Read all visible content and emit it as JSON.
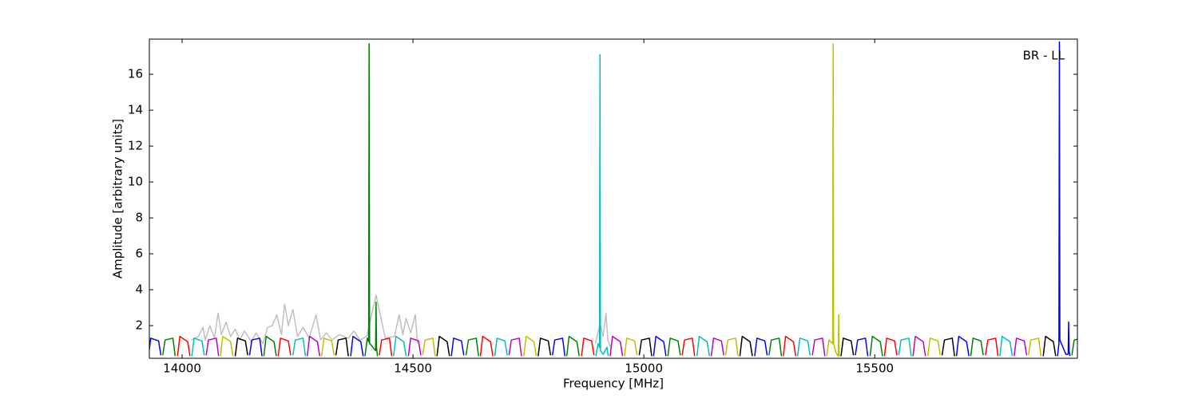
{
  "chart_data": {
    "type": "line",
    "xlabel": "Frequency [MHz]",
    "ylabel": "Amplitude [arbitrary units]",
    "annotation": "BR - LL",
    "xlim": [
      13929,
      15939
    ],
    "ylim": [
      0.18,
      17.96
    ],
    "xticks": [
      14000,
      14500,
      15000,
      15500
    ],
    "yticks": [
      2,
      4,
      6,
      8,
      10,
      12,
      14,
      16
    ],
    "grid": false,
    "series": [
      {
        "color": "#bfbfbf",
        "x": [
          14020,
          14035,
          14045,
          14050,
          14060,
          14070,
          14078,
          14085,
          14095,
          14105,
          14115,
          14125,
          14135,
          14150,
          14160,
          14175,
          14185,
          14195,
          14205,
          14215,
          14222,
          14230,
          14240,
          14250,
          14262,
          14275,
          14290,
          14300,
          14312,
          14325,
          14340,
          14360,
          14372,
          14385,
          14400,
          14420,
          14440,
          14460,
          14470,
          14478,
          14485,
          14495,
          14505,
          14510
        ],
        "values": [
          1.2,
          1.4,
          1.9,
          1.2,
          2.0,
          1.3,
          2.7,
          1.5,
          2.2,
          1.4,
          1.8,
          1.2,
          1.7,
          1.1,
          1.6,
          1.0,
          1.9,
          2.0,
          2.6,
          1.5,
          3.2,
          2.0,
          2.9,
          1.4,
          1.9,
          1.3,
          2.6,
          1.2,
          1.6,
          1.2,
          1.5,
          1.3,
          1.7,
          1.2,
          1.4,
          3.7,
          1.3,
          1.4,
          2.6,
          1.5,
          2.4,
          1.6,
          2.6,
          1.0
        ]
      },
      {
        "color": "#bfbfbf",
        "x": [
          14895,
          14905,
          14912,
          14918,
          14922,
          14928
        ],
        "values": [
          1.0,
          2.1,
          1.4,
          2.7,
          1.2,
          0.8
        ]
      },
      {
        "color": "#0000ff",
        "x": [
          13927,
          13932,
          13949,
          13954
        ],
        "values": [
          0.3,
          1.3,
          1.15,
          0.35
        ]
      },
      {
        "color": "#008000",
        "x": [
          13958,
          13963,
          13980,
          13985
        ],
        "values": [
          0.35,
          1.2,
          1.3,
          0.3
        ]
      },
      {
        "color": "#ff0000",
        "x": [
          13990,
          13995,
          14012,
          14017
        ],
        "values": [
          0.3,
          1.4,
          1.1,
          0.3
        ]
      },
      {
        "color": "#00bfbf",
        "x": [
          14021,
          14026,
          14043,
          14048
        ],
        "values": [
          0.3,
          1.3,
          1.15,
          0.35
        ]
      },
      {
        "color": "#bf00bf",
        "x": [
          14052,
          14057,
          14074,
          14079
        ],
        "values": [
          0.35,
          1.2,
          1.3,
          0.3
        ]
      },
      {
        "color": "#bfbf00",
        "x": [
          14083,
          14088,
          14105,
          14110
        ],
        "values": [
          0.3,
          1.4,
          1.1,
          0.3
        ]
      },
      {
        "color": "#000000",
        "x": [
          14115,
          14120,
          14137,
          14142
        ],
        "values": [
          0.3,
          1.3,
          1.15,
          0.35
        ]
      },
      {
        "color": "#0000ff",
        "x": [
          14146,
          14151,
          14168,
          14173
        ],
        "values": [
          0.35,
          1.2,
          1.3,
          0.3
        ]
      },
      {
        "color": "#008000",
        "x": [
          14177,
          14182,
          14199,
          14204
        ],
        "values": [
          0.3,
          1.4,
          1.1,
          0.3
        ]
      },
      {
        "color": "#ff0000",
        "x": [
          14208,
          14213,
          14230,
          14235
        ],
        "values": [
          0.3,
          1.3,
          1.15,
          0.35
        ]
      },
      {
        "color": "#00bfbf",
        "x": [
          14240,
          14245,
          14262,
          14267
        ],
        "values": [
          0.35,
          1.2,
          1.3,
          0.3
        ]
      },
      {
        "color": "#bf00bf",
        "x": [
          14271,
          14276,
          14293,
          14298
        ],
        "values": [
          0.3,
          1.4,
          1.1,
          0.3
        ]
      },
      {
        "color": "#bfbf00",
        "x": [
          14302,
          14307,
          14324,
          14329
        ],
        "values": [
          0.3,
          1.3,
          1.15,
          0.35
        ]
      },
      {
        "color": "#000000",
        "x": [
          14333,
          14338,
          14355,
          14360
        ],
        "values": [
          0.35,
          1.2,
          1.3,
          0.3
        ]
      },
      {
        "color": "#0000ff",
        "x": [
          14365,
          14370,
          14387,
          14392
        ],
        "values": [
          0.3,
          1.4,
          1.1,
          0.3
        ]
      },
      {
        "color": "#008000",
        "x": [
          14396,
          14401,
          14404,
          14405,
          14406,
          14410,
          14419,
          14420,
          14421,
          14423
        ],
        "values": [
          0.3,
          1.3,
          1.1,
          17.7,
          1.0,
          0.9,
          0.6,
          3.3,
          0.8,
          0.3
        ]
      },
      {
        "color": "#ff0000",
        "x": [
          14427,
          14432,
          14449,
          14454
        ],
        "values": [
          0.35,
          1.2,
          1.3,
          0.3
        ]
      },
      {
        "color": "#00bfbf",
        "x": [
          14458,
          14463,
          14480,
          14485
        ],
        "values": [
          0.3,
          1.4,
          1.1,
          0.3
        ]
      },
      {
        "color": "#bf00bf",
        "x": [
          14490,
          14495,
          14512,
          14517
        ],
        "values": [
          0.3,
          1.3,
          1.15,
          0.35
        ]
      },
      {
        "color": "#bfbf00",
        "x": [
          14521,
          14526,
          14543,
          14548
        ],
        "values": [
          0.35,
          1.2,
          1.3,
          0.3
        ]
      },
      {
        "color": "#000000",
        "x": [
          14552,
          14557,
          14574,
          14579
        ],
        "values": [
          0.3,
          1.4,
          1.1,
          0.3
        ]
      },
      {
        "color": "#0000ff",
        "x": [
          14583,
          14588,
          14605,
          14610
        ],
        "values": [
          0.3,
          1.3,
          1.15,
          0.35
        ]
      },
      {
        "color": "#008000",
        "x": [
          14615,
          14620,
          14637,
          14642
        ],
        "values": [
          0.35,
          1.2,
          1.3,
          0.3
        ]
      },
      {
        "color": "#ff0000",
        "x": [
          14646,
          14651,
          14668,
          14673
        ],
        "values": [
          0.3,
          1.4,
          1.1,
          0.3
        ]
      },
      {
        "color": "#00bfbf",
        "x": [
          14677,
          14682,
          14699,
          14704
        ],
        "values": [
          0.3,
          1.3,
          1.15,
          0.35
        ]
      },
      {
        "color": "#bf00bf",
        "x": [
          14708,
          14713,
          14730,
          14735
        ],
        "values": [
          0.35,
          1.2,
          1.3,
          0.3
        ]
      },
      {
        "color": "#bfbf00",
        "x": [
          14740,
          14745,
          14762,
          14767
        ],
        "values": [
          0.3,
          1.4,
          1.1,
          0.3
        ]
      },
      {
        "color": "#000000",
        "x": [
          14771,
          14776,
          14793,
          14798
        ],
        "values": [
          0.3,
          1.3,
          1.15,
          0.35
        ]
      },
      {
        "color": "#0000ff",
        "x": [
          14802,
          14807,
          14824,
          14829
        ],
        "values": [
          0.35,
          1.2,
          1.3,
          0.3
        ]
      },
      {
        "color": "#008000",
        "x": [
          14833,
          14838,
          14855,
          14860
        ],
        "values": [
          0.3,
          1.4,
          1.1,
          0.3
        ]
      },
      {
        "color": "#ff0000",
        "x": [
          14865,
          14870,
          14887,
          14892
        ],
        "values": [
          0.3,
          1.3,
          1.15,
          0.35
        ]
      },
      {
        "color": "#00bfbf",
        "x": [
          14896,
          14901,
          14904,
          14905,
          14906,
          14912,
          14920,
          14923
        ],
        "values": [
          0.3,
          1.0,
          0.8,
          17.1,
          0.6,
          0.4,
          0.8,
          0.3
        ]
      },
      {
        "color": "#bf00bf",
        "x": [
          14927,
          14932,
          14949,
          14954
        ],
        "values": [
          0.3,
          1.4,
          1.1,
          0.3
        ]
      },
      {
        "color": "#bfbf00",
        "x": [
          14958,
          14963,
          14980,
          14985
        ],
        "values": [
          0.3,
          1.3,
          1.15,
          0.35
        ]
      },
      {
        "color": "#000000",
        "x": [
          14990,
          14995,
          15012,
          15017
        ],
        "values": [
          0.35,
          1.2,
          1.3,
          0.3
        ]
      },
      {
        "color": "#0000ff",
        "x": [
          15021,
          15026,
          15043,
          15048
        ],
        "values": [
          0.3,
          1.4,
          1.1,
          0.3
        ]
      },
      {
        "color": "#008000",
        "x": [
          15052,
          15057,
          15074,
          15079
        ],
        "values": [
          0.3,
          1.3,
          1.15,
          0.35
        ]
      },
      {
        "color": "#ff0000",
        "x": [
          15083,
          15088,
          15105,
          15110
        ],
        "values": [
          0.35,
          1.2,
          1.3,
          0.3
        ]
      },
      {
        "color": "#00bfbf",
        "x": [
          15115,
          15120,
          15137,
          15142
        ],
        "values": [
          0.3,
          1.4,
          1.1,
          0.3
        ]
      },
      {
        "color": "#bf00bf",
        "x": [
          15146,
          15151,
          15168,
          15173
        ],
        "values": [
          0.3,
          1.3,
          1.15,
          0.35
        ]
      },
      {
        "color": "#bfbf00",
        "x": [
          15177,
          15182,
          15199,
          15204
        ],
        "values": [
          0.35,
          1.2,
          1.3,
          0.3
        ]
      },
      {
        "color": "#000000",
        "x": [
          15208,
          15213,
          15230,
          15235
        ],
        "values": [
          0.3,
          1.4,
          1.1,
          0.3
        ]
      },
      {
        "color": "#0000ff",
        "x": [
          15240,
          15245,
          15262,
          15267
        ],
        "values": [
          0.3,
          1.3,
          1.15,
          0.35
        ]
      },
      {
        "color": "#008000",
        "x": [
          15271,
          15276,
          15293,
          15298
        ],
        "values": [
          0.35,
          1.2,
          1.3,
          0.3
        ]
      },
      {
        "color": "#ff0000",
        "x": [
          15302,
          15307,
          15324,
          15329
        ],
        "values": [
          0.3,
          1.4,
          1.1,
          0.3
        ]
      },
      {
        "color": "#00bfbf",
        "x": [
          15333,
          15338,
          15355,
          15360
        ],
        "values": [
          0.3,
          1.3,
          1.15,
          0.35
        ]
      },
      {
        "color": "#bf00bf",
        "x": [
          15365,
          15370,
          15387,
          15392
        ],
        "values": [
          0.35,
          1.2,
          1.3,
          0.3
        ]
      },
      {
        "color": "#bfbf00",
        "x": [
          15396,
          15401,
          15409,
          15410,
          15411,
          15416,
          15421,
          15422,
          15423,
          15424
        ],
        "values": [
          0.3,
          1.2,
          1.0,
          17.7,
          1.0,
          0.5,
          0.3,
          2.6,
          0.4,
          0.3
        ]
      },
      {
        "color": "#000000",
        "x": [
          15427,
          15432,
          15449,
          15454
        ],
        "values": [
          0.3,
          1.3,
          1.15,
          0.35
        ]
      },
      {
        "color": "#0000ff",
        "x": [
          15458,
          15463,
          15480,
          15485
        ],
        "values": [
          0.35,
          1.2,
          1.3,
          0.3
        ]
      },
      {
        "color": "#008000",
        "x": [
          15490,
          15495,
          15512,
          15517
        ],
        "values": [
          0.3,
          1.4,
          1.1,
          0.3
        ]
      },
      {
        "color": "#ff0000",
        "x": [
          15521,
          15526,
          15543,
          15548
        ],
        "values": [
          0.3,
          1.3,
          1.15,
          0.35
        ]
      },
      {
        "color": "#00bfbf",
        "x": [
          15552,
          15557,
          15574,
          15579
        ],
        "values": [
          0.35,
          1.2,
          1.3,
          0.3
        ]
      },
      {
        "color": "#bf00bf",
        "x": [
          15583,
          15588,
          15605,
          15610
        ],
        "values": [
          0.3,
          1.4,
          1.1,
          0.3
        ]
      },
      {
        "color": "#bfbf00",
        "x": [
          15615,
          15620,
          15637,
          15642
        ],
        "values": [
          0.3,
          1.3,
          1.15,
          0.35
        ]
      },
      {
        "color": "#000000",
        "x": [
          15646,
          15651,
          15668,
          15673
        ],
        "values": [
          0.35,
          1.2,
          1.3,
          0.3
        ]
      },
      {
        "color": "#0000ff",
        "x": [
          15677,
          15682,
          15699,
          15704
        ],
        "values": [
          0.3,
          1.4,
          1.1,
          0.3
        ]
      },
      {
        "color": "#008000",
        "x": [
          15708,
          15713,
          15730,
          15735
        ],
        "values": [
          0.3,
          1.3,
          1.15,
          0.35
        ]
      },
      {
        "color": "#ff0000",
        "x": [
          15740,
          15745,
          15762,
          15767
        ],
        "values": [
          0.35,
          1.2,
          1.3,
          0.3
        ]
      },
      {
        "color": "#00bfbf",
        "x": [
          15771,
          15776,
          15793,
          15798
        ],
        "values": [
          0.3,
          1.4,
          1.1,
          0.3
        ]
      },
      {
        "color": "#bf00bf",
        "x": [
          15802,
          15807,
          15824,
          15829
        ],
        "values": [
          0.3,
          1.3,
          1.15,
          0.35
        ]
      },
      {
        "color": "#bfbf00",
        "x": [
          15833,
          15838,
          15855,
          15860
        ],
        "values": [
          0.35,
          1.2,
          1.3,
          0.3
        ]
      },
      {
        "color": "#000000",
        "x": [
          15865,
          15870,
          15887,
          15892
        ],
        "values": [
          0.3,
          1.4,
          1.1,
          0.3
        ]
      },
      {
        "color": "#0000ff",
        "x": [
          15896,
          15899,
          15900,
          15901,
          15906,
          15914,
          15919,
          15920,
          15921,
          15923
        ],
        "values": [
          0.3,
          1.0,
          17.8,
          1.2,
          0.9,
          0.4,
          0.4,
          2.2,
          0.6,
          0.3
        ]
      },
      {
        "color": "#008000",
        "x": [
          15927,
          15932,
          15949,
          15954
        ],
        "values": [
          0.35,
          1.2,
          1.3,
          0.3
        ]
      }
    ]
  }
}
